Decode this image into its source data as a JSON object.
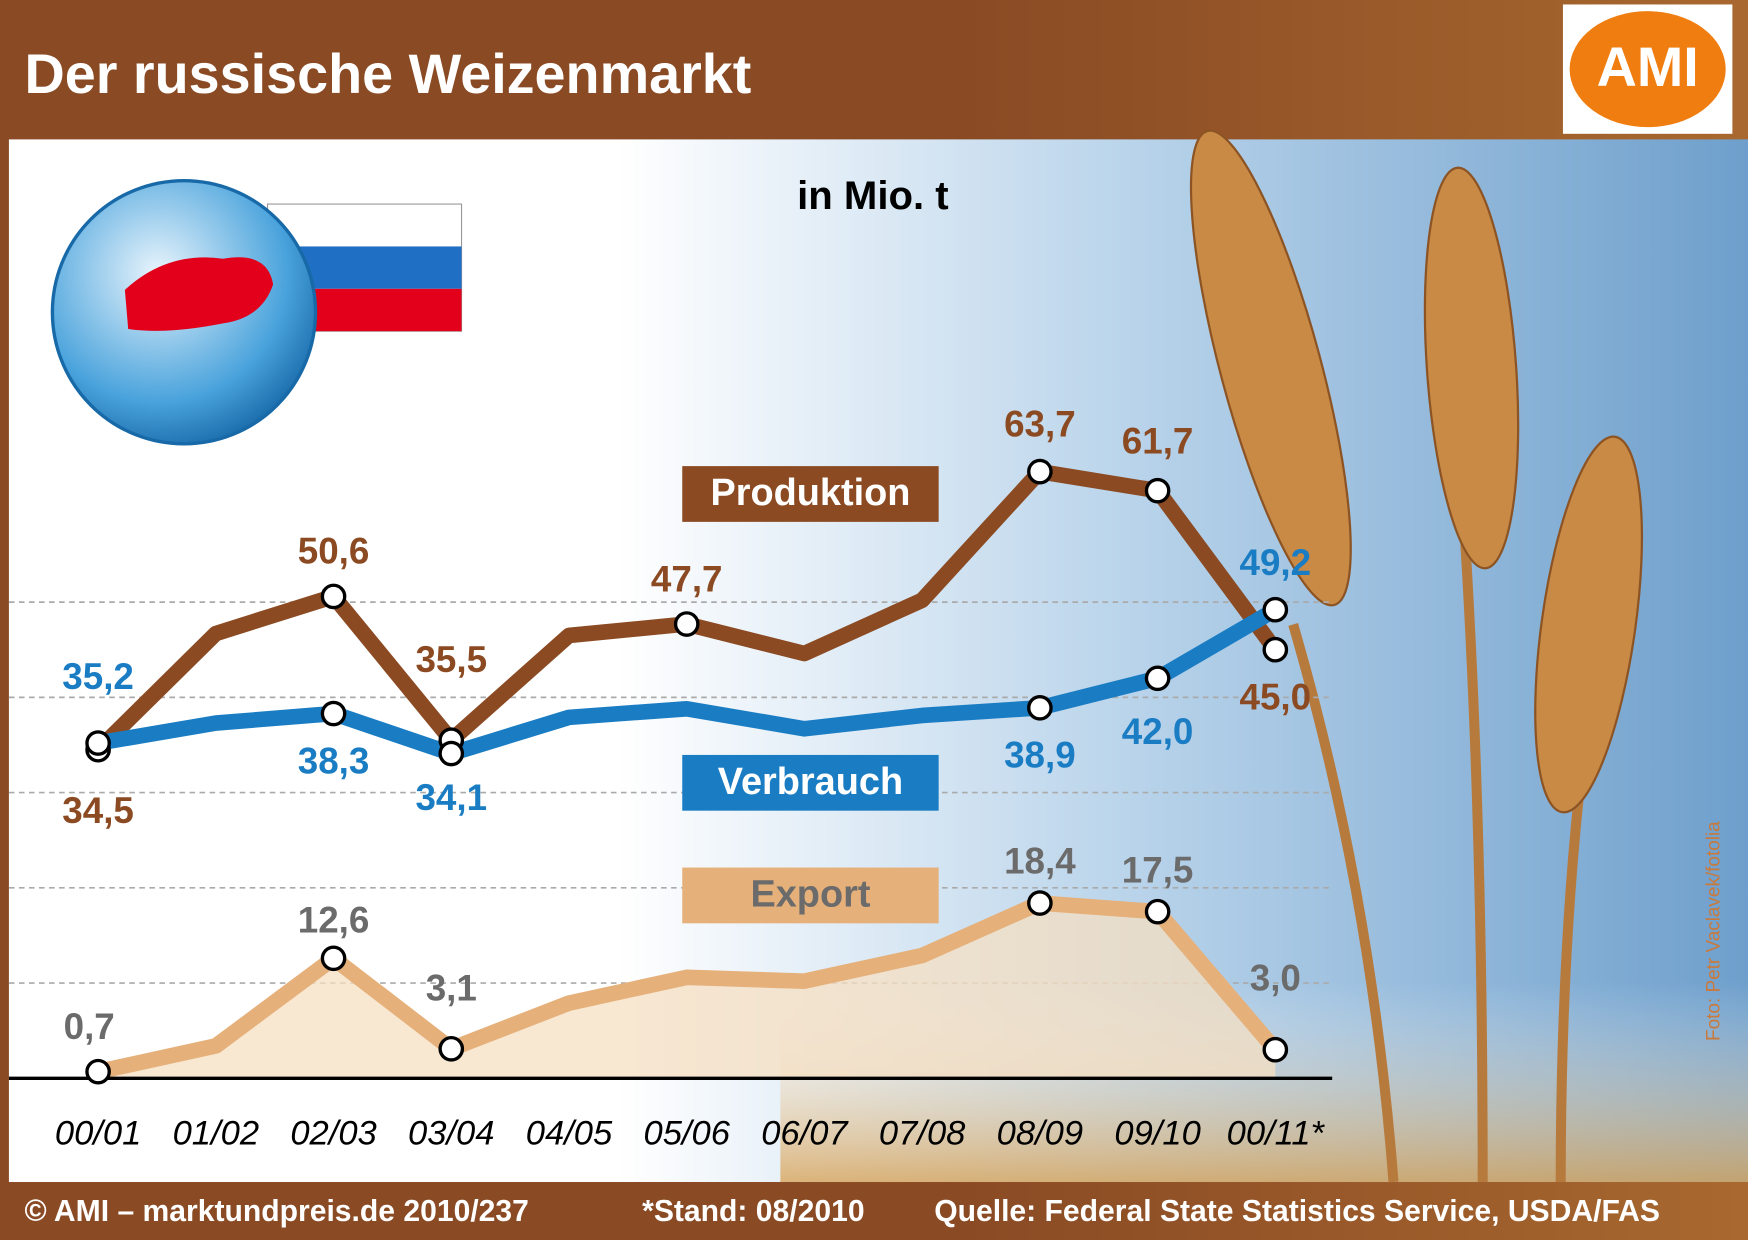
{
  "chart_data": {
    "type": "line",
    "title": "Der russische Weizenmarkt",
    "unit": "in Mio. t",
    "logo": "AMI",
    "credit": "Foto: Petr Vaclavek/fotolia",
    "footer": [
      "© AMI – marktundpreis.de 2010/237",
      "*Stand: 08/2010",
      "Quelle: Federal State Statistics Service, USDA/FAS"
    ],
    "categories": [
      "00/01",
      "01/02",
      "02/03",
      "03/04",
      "04/05",
      "05/06",
      "06/07",
      "07/08",
      "08/09",
      "09/10",
      "00/11*"
    ],
    "series": [
      {
        "name": "Produktion",
        "color": "#8b4a22",
        "values": [
          34.5,
          46.7,
          50.6,
          35.5,
          46.5,
          47.7,
          44.6,
          50.2,
          63.7,
          61.7,
          45.0
        ],
        "value_labels": [
          "34,5",
          null,
          "50,6",
          "35,5",
          null,
          "47,7",
          null,
          null,
          "63,7",
          "61,7",
          "45,0"
        ]
      },
      {
        "name": "Verbrauch",
        "color": "#1a7dc4",
        "values": [
          35.2,
          37.3,
          38.3,
          34.1,
          37.9,
          38.8,
          36.7,
          38.1,
          38.9,
          42.0,
          49.2
        ],
        "value_labels": [
          "35,2",
          null,
          "38,3",
          "34,1",
          null,
          null,
          null,
          null,
          "38,9",
          "42,0",
          "49,2"
        ]
      },
      {
        "name": "Export",
        "color": "#e6b07a",
        "values": [
          0.7,
          3.4,
          12.6,
          3.1,
          7.9,
          10.6,
          10.2,
          12.9,
          18.4,
          17.5,
          3.0
        ],
        "value_labels": [
          "0,7",
          null,
          "12,6",
          "3,1",
          null,
          null,
          null,
          null,
          "18,4",
          "17,5",
          "3,0"
        ]
      }
    ],
    "ylim": [
      0,
      98
    ],
    "yticks": [
      0,
      10,
      20,
      30,
      40,
      50
    ],
    "grid": true,
    "tick_labels": false
  }
}
